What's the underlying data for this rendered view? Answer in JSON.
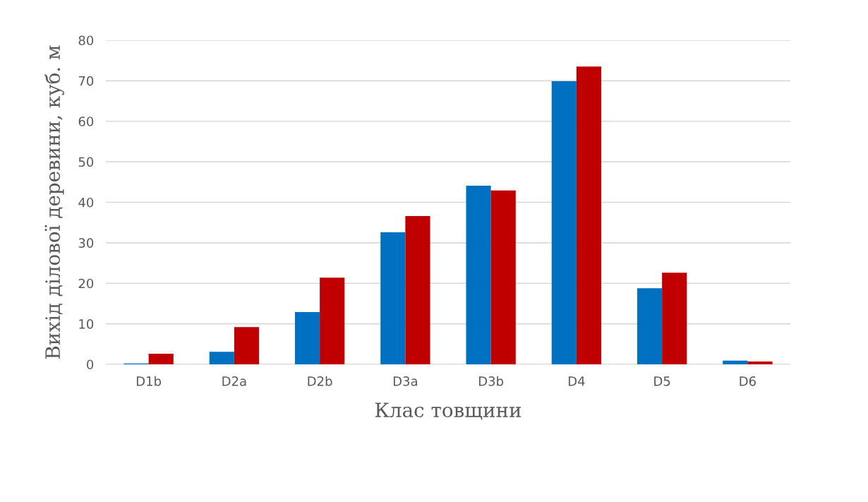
{
  "chart_data": {
    "type": "bar",
    "xlabel": "Клас товщини",
    "ylabel": "Вихід ділової деревини, куб. м",
    "categories": [
      "D1b",
      "D2a",
      "D2b",
      "D3a",
      "D3b",
      "D4",
      "D5",
      "D6"
    ],
    "series": [
      {
        "color": "#0070c0",
        "values": [
          0.2,
          3.1,
          12.9,
          32.6,
          44.1,
          69.9,
          18.8,
          0.9
        ]
      },
      {
        "color": "#c00000",
        "values": [
          2.6,
          9.2,
          21.4,
          36.6,
          42.9,
          73.5,
          22.6,
          0.7
        ]
      }
    ],
    "ylim": [
      0,
      80
    ],
    "yticks": [
      0,
      10,
      20,
      30,
      40,
      50,
      60,
      70,
      80
    ],
    "grid": "y",
    "legend": false
  }
}
